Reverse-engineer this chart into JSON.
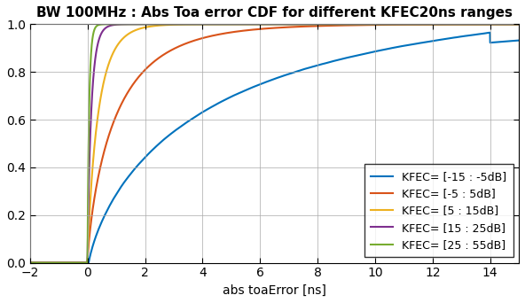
{
  "title": "BW 100MHz : Abs Toa error CDF for different KFEC20ns ranges",
  "xlabel": "abs toaError [ns]",
  "xlim": [
    -2,
    15
  ],
  "ylim": [
    0,
    1
  ],
  "xticks": [
    -2,
    0,
    2,
    4,
    6,
    8,
    10,
    12,
    14
  ],
  "yticks": [
    0,
    0.2,
    0.4,
    0.6,
    0.8,
    1.0
  ],
  "legend_labels": [
    "KFEC= [-15 : -5dB]",
    "KFEC= [-5 : 5dB]",
    "KFEC= [5 : 15dB]",
    "KFEC= [15 : 25dB]",
    "KFEC= [25 : 55dB]"
  ],
  "colors": [
    "#0072BD",
    "#D95319",
    "#EDB120",
    "#7E2F8E",
    "#77AC30"
  ],
  "line_width": 1.5,
  "title_fontsize": 11,
  "label_fontsize": 10,
  "tick_fontsize": 10,
  "legend_fontsize": 9,
  "blue_weibull_scale": 3.8,
  "blue_weibull_shape": 0.72,
  "orange_weibull_scale": 1.05,
  "orange_weibull_shape": 0.78,
  "yellow_scale": 0.38,
  "purple_scale": 0.13,
  "green_scale": 0.055,
  "blue_noise_seed": 42,
  "blue_noise_amp": 0.012
}
